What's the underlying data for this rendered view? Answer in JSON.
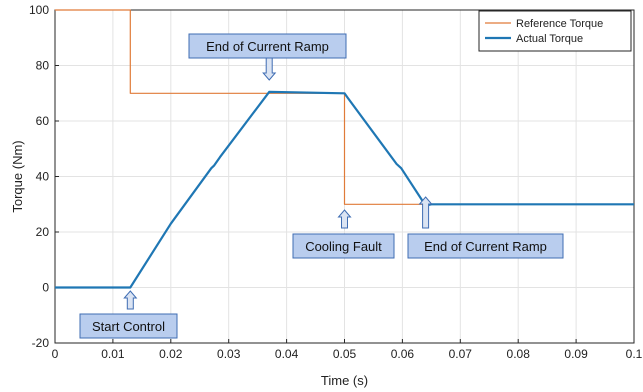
{
  "chart_data": {
    "type": "line",
    "title": "",
    "xlabel": "Time (s)",
    "ylabel": "Torque (Nm)",
    "xlim": [
      0,
      0.1
    ],
    "ylim": [
      -20,
      100
    ],
    "xticks": [
      0,
      0.01,
      0.02,
      0.03,
      0.04,
      0.05,
      0.06,
      0.07,
      0.08,
      0.09,
      0.1
    ],
    "xtick_labels": [
      "0",
      "0.01",
      "0.02",
      "0.03",
      "0.04",
      "0.05",
      "0.06",
      "0.07",
      "0.08",
      "0.09",
      "0.1"
    ],
    "yticks": [
      -20,
      0,
      20,
      40,
      60,
      80,
      100
    ],
    "ytick_labels": [
      "-20",
      "0",
      "20",
      "40",
      "60",
      "80",
      "100"
    ],
    "grid": true,
    "legend_position": "top-right",
    "series": [
      {
        "name": "Reference Torque",
        "color": "#e07b39",
        "x": [
          0,
          0.013,
          0.013,
          0.05,
          0.05,
          0.1
        ],
        "y": [
          100,
          100,
          70,
          70,
          30,
          30
        ]
      },
      {
        "name": "Actual Torque",
        "color": "#1f77b4",
        "x": [
          0,
          0.013,
          0.02,
          0.027,
          0.0275,
          0.0285,
          0.037,
          0.05,
          0.0505,
          0.059,
          0.0598,
          0.064,
          0.065,
          0.1
        ],
        "y": [
          0,
          0,
          23,
          43,
          44,
          47,
          70.5,
          70,
          68.5,
          44.5,
          43,
          29.5,
          30,
          30
        ]
      }
    ],
    "annotations": [
      {
        "text": "Start Control",
        "x": 0.013,
        "y": 0,
        "arrow": "up"
      },
      {
        "text": "End of Current Ramp",
        "x": 0.037,
        "y": 70.5,
        "arrow": "down"
      },
      {
        "text": "Cooling Fault",
        "x": 0.05,
        "y": 30,
        "arrow": "up"
      },
      {
        "text": "End of Current Ramp",
        "x": 0.064,
        "y": 29.5,
        "arrow": "up"
      }
    ]
  }
}
